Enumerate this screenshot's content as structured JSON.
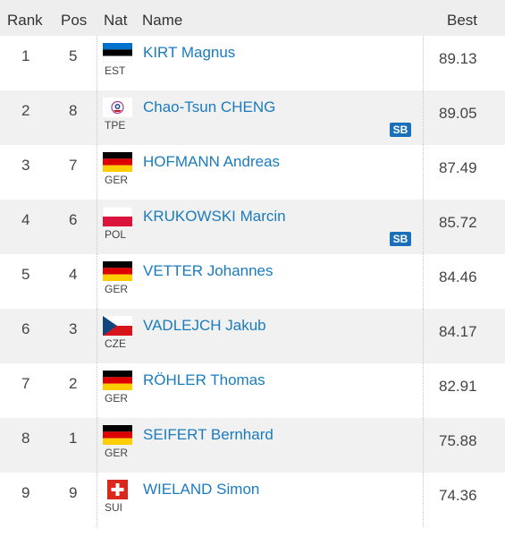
{
  "header": {
    "rank": "Rank",
    "pos": "Pos",
    "nat": "Nat",
    "name": "Name",
    "best": "Best"
  },
  "rows": [
    {
      "rank": "1",
      "pos": "5",
      "nat": "EST",
      "name": "KIRT Magnus",
      "best": "89.13",
      "flag": "flag-estonia-icon"
    },
    {
      "rank": "2",
      "pos": "8",
      "nat": "TPE",
      "name": "Chao-Tsun CHENG",
      "best": "89.05",
      "badge": "SB",
      "flag": "flag-chinese-taipei-icon"
    },
    {
      "rank": "3",
      "pos": "7",
      "nat": "GER",
      "name": "HOFMANN Andreas",
      "best": "87.49",
      "flag": "flag-germany-icon"
    },
    {
      "rank": "4",
      "pos": "6",
      "nat": "POL",
      "name": "KRUKOWSKI Marcin",
      "best": "85.72",
      "badge": "SB",
      "flag": "flag-poland-icon"
    },
    {
      "rank": "5",
      "pos": "4",
      "nat": "GER",
      "name": "VETTER Johannes",
      "best": "84.46",
      "flag": "flag-germany-icon"
    },
    {
      "rank": "6",
      "pos": "3",
      "nat": "CZE",
      "name": "VADLEJCH Jakub",
      "best": "84.17",
      "flag": "flag-czechia-icon"
    },
    {
      "rank": "7",
      "pos": "2",
      "nat": "GER",
      "name": "RÖHLER Thomas",
      "best": "82.91",
      "flag": "flag-germany-icon"
    },
    {
      "rank": "8",
      "pos": "1",
      "nat": "GER",
      "name": "SEIFERT Bernhard",
      "best": "75.88",
      "flag": "flag-germany-icon"
    },
    {
      "rank": "9",
      "pos": "9",
      "nat": "SUI",
      "name": "WIELAND Simon",
      "best": "74.36",
      "flag": "flag-switzerland-icon"
    }
  ],
  "colors": {
    "link": "#1a7bbf",
    "badge": "#1a6fb9",
    "header_bg": "#eeeeee",
    "alt_row_bg": "#f1f1f1"
  }
}
